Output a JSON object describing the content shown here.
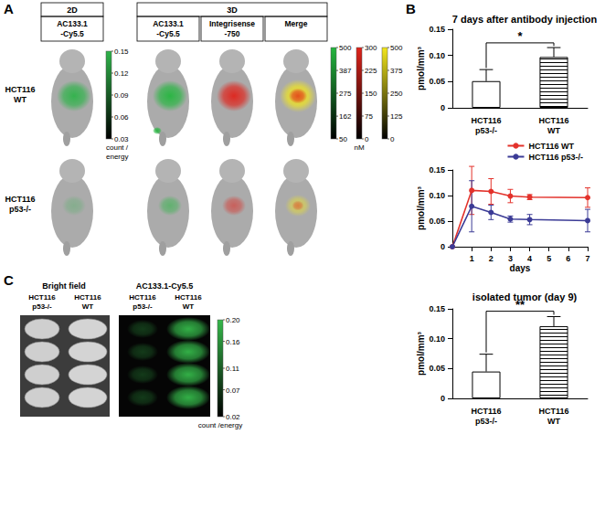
{
  "panels": {
    "A": {
      "label": "A",
      "headers": [
        "2D",
        "3D"
      ],
      "columns": [
        "AC133.1\n-Cy5.5",
        "AC133.1\n-Cy5.5",
        "Integrisense\n-750",
        "Merge"
      ],
      "rows": [
        "HCT116\nWT",
        "HCT116\np53-/-"
      ],
      "colorbars": [
        {
          "color": "#2fb34a",
          "range": [
            0.03,
            0.15
          ],
          "ticks": [
            0.03,
            0.06,
            0.09,
            0.12,
            0.15
          ],
          "title": "count /\nenergy"
        },
        {
          "color": "#25b63f",
          "range": [
            50,
            500
          ],
          "ticks": [
            50,
            162,
            275,
            387,
            500
          ]
        },
        {
          "color": "#e0231b",
          "range": [
            0,
            300
          ],
          "ticks": [
            0,
            75,
            150,
            225,
            300
          ],
          "title": "nM"
        },
        {
          "color": "#f2e61c",
          "range": [
            0,
            500
          ],
          "ticks": [
            0,
            125,
            250,
            375,
            500
          ]
        }
      ]
    },
    "B": {
      "label": "B"
    },
    "C": {
      "label": "C",
      "headers": [
        "Bright field",
        "AC133.1-Cy5.5"
      ],
      "columns": [
        "HCT116\np53-/-",
        "HCT116\nWT"
      ],
      "colorbar": {
        "color": "#35b84a",
        "range": [
          0.02,
          0.2
        ],
        "ticks": [
          0.02,
          0.07,
          0.11,
          0.16,
          {
            "value": 0.2,
            "label": "0.20"
          }
        ],
        "title": "count /energy"
      }
    }
  },
  "chart_data": [
    {
      "type": "bar",
      "title": "7 days after antibody injection",
      "categories": [
        "HCT116\np53-/-",
        "HCT116\nWT"
      ],
      "values": [
        0.051,
        0.097
      ],
      "errors": [
        0.022,
        0.018
      ],
      "colors": [
        "#ffffff",
        "#ffffff"
      ],
      "ylabel": "pmol/mm³",
      "ylim": [
        0,
        0.15
      ],
      "yticks": [
        0,
        0.05,
        {
          "value": 0.1,
          "label": "0.10"
        },
        0.15
      ],
      "significance": "*",
      "grid": false
    },
    {
      "type": "line",
      "x": [
        0,
        1,
        2,
        3,
        4,
        7
      ],
      "xlim": [
        0,
        7
      ],
      "xticks": [
        1,
        2,
        3,
        4,
        5,
        6,
        7
      ],
      "xlabel": "days",
      "ylabel": "pmol/mm³",
      "ylim": [
        0,
        0.15
      ],
      "yticks": [
        0,
        0.05,
        {
          "value": 0.1,
          "label": "0.10"
        },
        0.15
      ],
      "marker": "circle",
      "legend": "upper right",
      "grid": false,
      "series": [
        {
          "name": "HCT116 WT",
          "color": "#e3322b",
          "values": [
            0,
            0.11,
            0.108,
            0.099,
            0.097,
            0.096
          ],
          "errors": [
            null,
            0.047,
            0.025,
            0.013,
            0.005,
            0.019
          ]
        },
        {
          "name": "HCT116 p53-/-",
          "color": "#3b3b96",
          "values": [
            0,
            0.079,
            0.067,
            0.054,
            0.053,
            0.051
          ],
          "errors": [
            null,
            0.05,
            0.014,
            0.006,
            0.01,
            0.022
          ]
        }
      ]
    },
    {
      "type": "bar",
      "title": "isolated tumor (day 9)",
      "categories": [
        "HCT116\np53-/-",
        "HCT116\nWT"
      ],
      "values": [
        0.045,
        0.121
      ],
      "errors": [
        0.029,
        0.016
      ],
      "colors": [
        "#ffffff",
        "#ffffff"
      ],
      "ylabel": "pmol/mm³",
      "ylim": [
        0,
        0.15
      ],
      "yticks": [
        0,
        0.05,
        {
          "value": 0.1,
          "label": "0.10"
        },
        0.15
      ],
      "significance": "**",
      "grid": false
    }
  ]
}
